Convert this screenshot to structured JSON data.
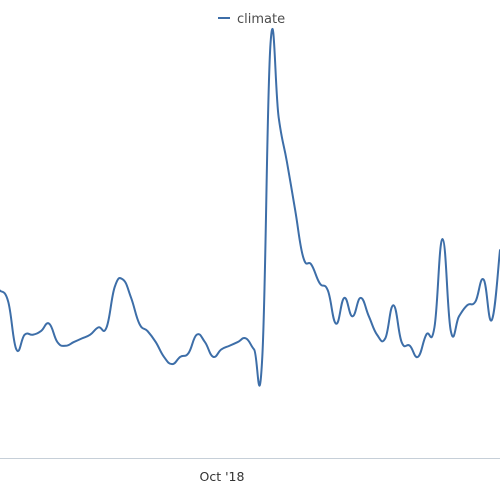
{
  "chart_data": {
    "type": "line",
    "title": "",
    "xlabel": "",
    "ylabel": "",
    "x_tick_labels": [
      "Oct '18"
    ],
    "legend": {
      "position": "top-center",
      "entries": [
        "climate"
      ]
    },
    "grid": false,
    "colors": {
      "series": "#3d6ea8",
      "axis": "#c6cfd8",
      "text": "#4d4d4d"
    },
    "series": [
      {
        "name": "climate",
        "values": [
          33,
          30,
          17,
          21,
          21,
          22,
          24,
          19,
          18,
          19,
          20,
          21,
          23,
          23,
          34,
          36,
          31,
          24,
          22,
          19,
          15,
          13,
          15,
          16,
          21,
          19,
          15,
          17,
          18,
          19,
          20,
          17,
          15,
          100,
          80,
          68,
          55,
          42,
          40,
          35,
          33,
          24,
          31,
          26,
          31,
          26,
          21,
          20,
          29,
          19,
          18,
          15,
          21,
          23,
          47,
          22,
          26,
          29,
          30,
          36,
          25,
          44
        ]
      }
    ]
  }
}
